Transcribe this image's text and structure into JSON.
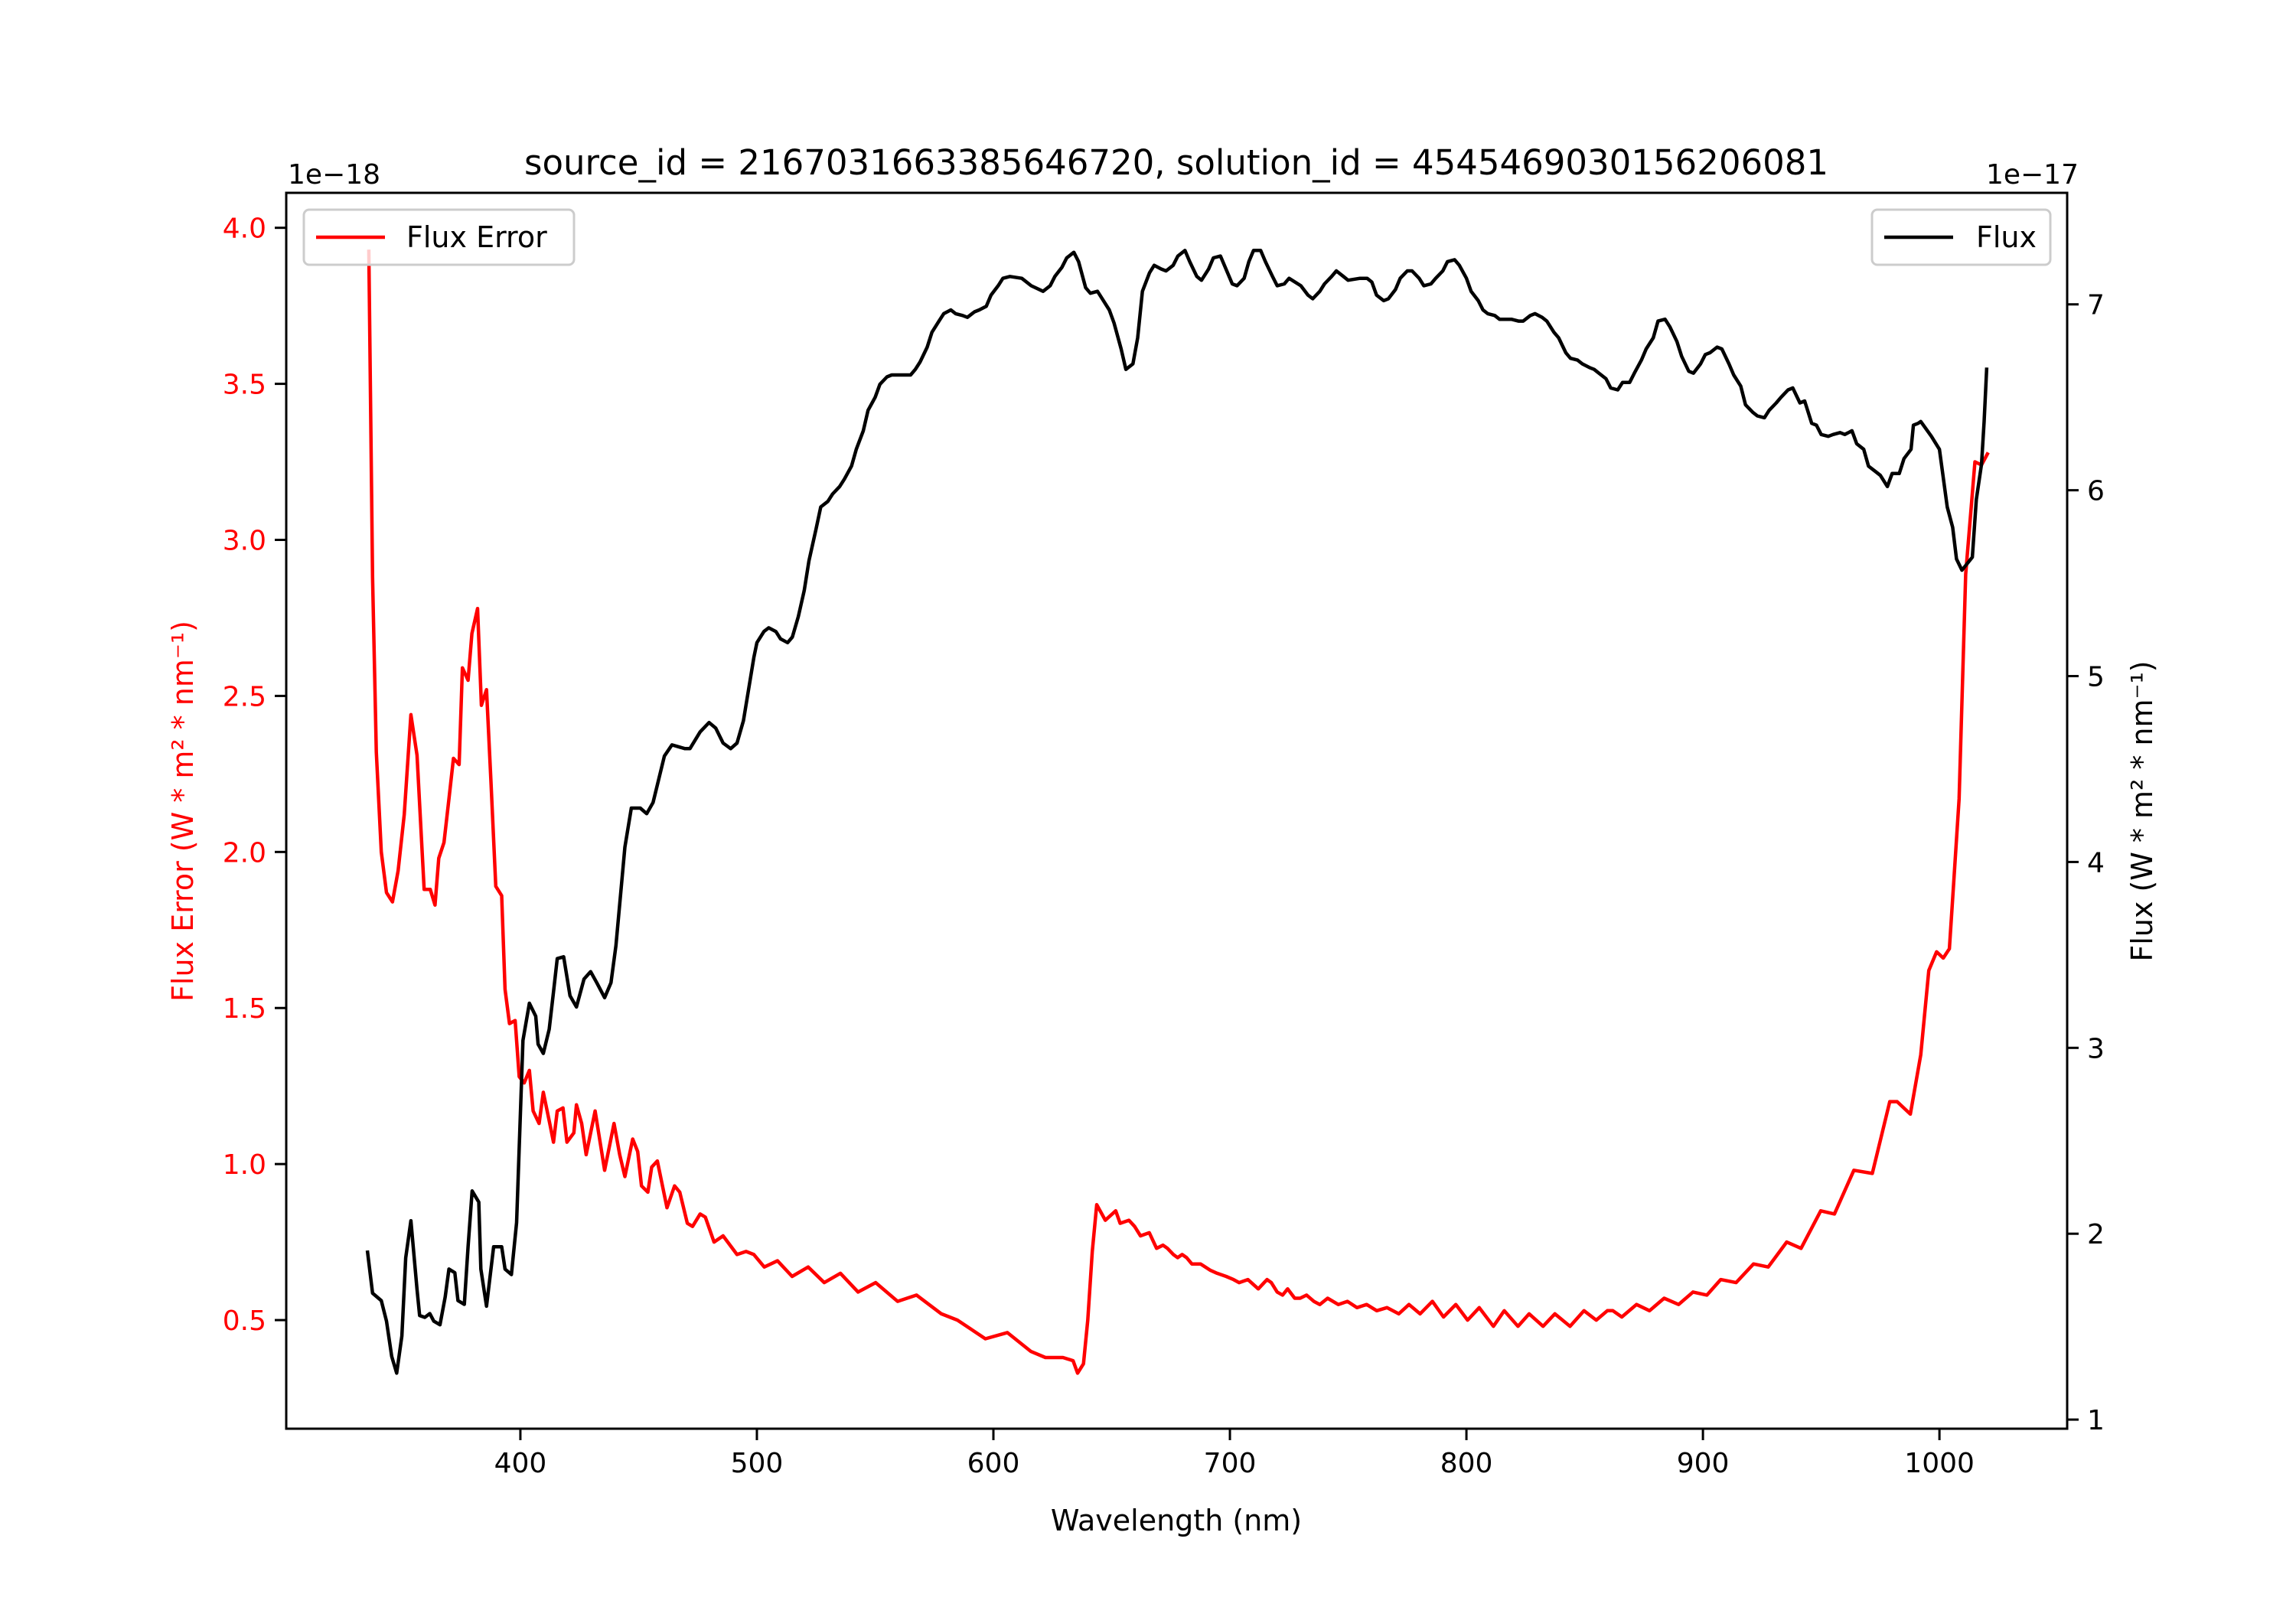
{
  "chart_data": {
    "type": "line",
    "title": "source_id = 2167031663385646720, solution_id = 4545469030156206081",
    "xlabel": "Wavelength (nm)",
    "xlim": [
      301,
      1054
    ],
    "x_ticks": [
      "400",
      "500",
      "600",
      "700",
      "800",
      "900",
      "1000"
    ],
    "grid": false,
    "left_axis": {
      "label": "Flux Error (W * m² * nm⁻¹)",
      "offset_text": "1e−18",
      "ylim": [
        0.152,
        4.112
      ],
      "ticks": [
        "0.5",
        "1.0",
        "1.5",
        "2.0",
        "2.5",
        "3.0",
        "3.5",
        "4.0"
      ],
      "color": "#ff0000"
    },
    "right_axis": {
      "label": "Flux (W * m² * nm⁻¹)",
      "offset_text": "1e−17",
      "ylim": [
        0.951,
        7.6
      ],
      "ticks": [
        "1",
        "2",
        "3",
        "4",
        "5",
        "6",
        "7"
      ],
      "color": "#000000"
    },
    "series": [
      {
        "name": "Flux Error",
        "axis": "left",
        "color": "#ff0000",
        "legend": "top-left",
        "x": [
          335.9,
          337.5,
          339.1,
          341.2,
          343.4,
          345.9,
          348.3,
          350.9,
          353.7,
          356.3,
          359.3,
          361.9,
          363.9,
          365.5,
          367.7,
          369.8,
          371.7,
          374.1,
          375.5,
          377.9,
          379.5,
          381.9,
          383.5,
          385.7,
          387.6,
          389.6,
          392.1,
          393.5,
          395.4,
          397.8,
          399.5,
          401.6,
          403.8,
          405.4,
          407.9,
          409.7,
          412.4,
          414.0,
          415.6,
          418.0,
          419.7,
          422.6,
          423.7,
          425.9,
          427.8,
          431.6,
          435.6,
          439.6,
          442.0,
          444.2,
          447.5,
          449.6,
          451.2,
          453.9,
          455.5,
          457.9,
          462.0,
          465.2,
          467.4,
          470.6,
          472.8,
          476.0,
          478.2,
          481.9,
          485.7,
          491.6,
          495.4,
          498.7,
          503.1,
          508.7,
          514.9,
          521.7,
          528.5,
          535.3,
          542.8,
          550.2,
          559.5,
          567.5,
          578.0,
          584.8,
          596.6,
          605.9,
          615.8,
          622.0,
          629.4,
          633.7,
          635.6,
          638.1,
          639.9,
          641.8,
          643.7,
          647.3,
          651.7,
          653.6,
          657.3,
          659.7,
          662.2,
          665.9,
          669.0,
          671.7,
          673.6,
          676.1,
          677.9,
          679.8,
          681.7,
          683.9,
          687.6,
          691.6,
          694.6,
          698.4,
          701.5,
          703.9,
          707.6,
          712.0,
          715.7,
          717.5,
          720.0,
          722.3,
          724.4,
          727.4,
          729.7,
          732.4,
          735.5,
          738.0,
          741.3,
          745.8,
          749.7,
          753.7,
          757.8,
          762.1,
          766.4,
          771.4,
          775.7,
          780.4,
          785.6,
          790.3,
          795.5,
          800.5,
          805.4,
          811.4,
          816.0,
          821.8,
          826.5,
          832.4,
          837.4,
          843.8,
          849.7,
          854.9,
          859.6,
          861.9,
          865.7,
          871.9,
          877.4,
          883.6,
          889.7,
          895.8,
          901.7,
          907.5,
          914.0,
          921.4,
          927.6,
          935.4,
          941.5,
          949.8,
          955.6,
          963.8,
          971.6,
          979.0,
          982.1,
          987.7,
          992.1,
          995.5,
          998.8,
          1001.6,
          1004.2,
          1006.0,
          1008.3,
          1011.1,
          1015.0,
          1017.8,
          1020.6
        ],
        "y": [
          3.93,
          2.88,
          2.32,
          2.0,
          1.87,
          1.84,
          1.94,
          2.12,
          2.44,
          2.31,
          1.88,
          1.88,
          1.83,
          1.98,
          2.03,
          2.17,
          2.3,
          2.28,
          2.59,
          2.55,
          2.7,
          2.78,
          2.47,
          2.52,
          2.22,
          1.89,
          1.86,
          1.56,
          1.45,
          1.46,
          1.28,
          1.26,
          1.3,
          1.17,
          1.13,
          1.23,
          1.13,
          1.07,
          1.17,
          1.18,
          1.07,
          1.1,
          1.19,
          1.13,
          1.03,
          1.17,
          0.98,
          1.13,
          1.03,
          0.96,
          1.08,
          1.04,
          0.93,
          0.91,
          0.99,
          1.01,
          0.86,
          0.93,
          0.91,
          0.81,
          0.8,
          0.84,
          0.83,
          0.75,
          0.77,
          0.71,
          0.72,
          0.71,
          0.67,
          0.69,
          0.64,
          0.67,
          0.62,
          0.65,
          0.59,
          0.62,
          0.56,
          0.58,
          0.52,
          0.5,
          0.44,
          0.46,
          0.4,
          0.38,
          0.38,
          0.37,
          0.33,
          0.36,
          0.5,
          0.72,
          0.87,
          0.82,
          0.85,
          0.81,
          0.82,
          0.8,
          0.77,
          0.78,
          0.73,
          0.74,
          0.73,
          0.71,
          0.7,
          0.71,
          0.7,
          0.68,
          0.68,
          0.66,
          0.65,
          0.64,
          0.63,
          0.62,
          0.63,
          0.6,
          0.63,
          0.62,
          0.59,
          0.58,
          0.6,
          0.57,
          0.57,
          0.58,
          0.56,
          0.55,
          0.57,
          0.55,
          0.56,
          0.54,
          0.55,
          0.53,
          0.54,
          0.52,
          0.55,
          0.52,
          0.56,
          0.51,
          0.55,
          0.5,
          0.54,
          0.48,
          0.53,
          0.48,
          0.52,
          0.48,
          0.52,
          0.48,
          0.53,
          0.5,
          0.53,
          0.53,
          0.51,
          0.55,
          0.53,
          0.57,
          0.55,
          0.59,
          0.58,
          0.63,
          0.62,
          0.68,
          0.67,
          0.75,
          0.73,
          0.85,
          0.84,
          0.98,
          0.97,
          1.2,
          1.2,
          1.16,
          1.35,
          1.62,
          1.68,
          1.66,
          1.69,
          1.9,
          2.17,
          2.89,
          3.25,
          3.24,
          3.28
        ]
      },
      {
        "name": "Flux",
        "axis": "right",
        "color": "#000000",
        "legend": "top-right",
        "x": [
          335.3,
          337.5,
          341.2,
          343.4,
          345.6,
          347.7,
          349.9,
          351.5,
          353.7,
          356.3,
          357.4,
          359.6,
          361.7,
          363.4,
          366.0,
          368.2,
          369.8,
          372.3,
          373.6,
          376.3,
          377.9,
          379.6,
          382.4,
          383.3,
          385.7,
          388.7,
          392.1,
          393.5,
          396.2,
          398.4,
          401.1,
          403.8,
          406.5,
          407.5,
          409.7,
          412.2,
          414.0,
          415.6,
          418.3,
          421.0,
          423.7,
          426.9,
          429.7,
          432.3,
          435.6,
          438.3,
          440.4,
          444.2,
          446.9,
          450.7,
          453.4,
          456.1,
          460.9,
          464.1,
          469.6,
          471.7,
          476.0,
          479.8,
          482.6,
          485.7,
          488.9,
          491.6,
          494.3,
          498.7,
          500,
          503,
          505,
          508,
          510,
          513,
          515,
          517.5,
          520,
          522,
          525,
          527,
          530,
          532,
          535,
          537,
          540,
          542,
          545,
          547,
          550,
          552,
          555,
          557,
          562,
          565,
          567,
          569,
          572,
          574,
          577,
          579,
          582,
          584,
          587,
          589,
          592,
          594,
          597,
          599,
          602,
          604,
          607,
          612,
          616,
          621,
          624,
          626,
          629,
          631,
          634,
          636,
          639,
          641,
          644,
          646,
          649,
          651,
          654,
          656,
          659,
          661,
          663,
          666,
          668,
          671,
          673,
          676,
          678,
          681,
          683,
          686,
          688,
          691,
          693,
          696,
          698,
          701,
          703,
          706,
          708,
          710,
          713,
          715,
          718,
          720,
          723,
          725,
          730,
          733,
          735,
          738,
          740,
          743,
          745,
          748,
          750,
          755,
          758,
          760,
          762,
          765,
          767,
          770,
          772,
          775,
          777,
          780,
          782,
          785,
          787,
          790,
          792,
          795,
          797,
          800,
          802,
          805,
          807,
          809,
          812,
          814,
          819,
          822,
          824,
          827,
          829,
          832,
          834,
          837,
          839,
          842,
          844,
          847,
          849,
          852,
          854,
          856,
          859,
          861,
          864,
          866,
          869,
          871,
          874,
          876,
          879,
          881,
          884,
          886,
          889,
          891,
          894,
          896,
          899,
          901,
          903,
          906,
          908,
          911,
          913,
          916,
          918,
          921,
          923,
          926,
          928,
          931,
          933,
          936,
          938,
          941,
          943,
          946,
          948,
          950,
          953,
          955,
          958,
          960,
          963,
          965,
          968,
          970,
          973,
          975,
          978,
          980,
          983,
          985,
          988,
          989,
          991,
          992.1,
          996.6,
          1000,
          1003.3,
          1005.6,
          1007.2,
          1009.5,
          1013.9,
          1015.6,
          1017.8,
          1018.9,
          1020
        ],
        "y": [
          1.91,
          1.68,
          1.64,
          1.53,
          1.34,
          1.25,
          1.45,
          1.87,
          2.07,
          1.7,
          1.56,
          1.55,
          1.57,
          1.53,
          1.51,
          1.66,
          1.81,
          1.79,
          1.64,
          1.62,
          1.93,
          2.23,
          2.17,
          1.81,
          1.61,
          1.93,
          1.93,
          1.81,
          1.78,
          2.06,
          3.04,
          3.24,
          3.17,
          3.02,
          2.97,
          3.1,
          3.3,
          3.48,
          3.49,
          3.28,
          3.22,
          3.37,
          3.41,
          3.35,
          3.27,
          3.35,
          3.55,
          4.08,
          4.29,
          4.29,
          4.26,
          4.32,
          4.57,
          4.63,
          4.61,
          4.61,
          4.7,
          4.75,
          4.72,
          4.64,
          4.61,
          4.64,
          4.76,
          5.1,
          5.18,
          5.24,
          5.26,
          5.24,
          5.2,
          5.18,
          5.21,
          5.32,
          5.46,
          5.62,
          5.79,
          5.91,
          5.94,
          5.98,
          6.02,
          6.06,
          6.13,
          6.22,
          6.32,
          6.43,
          6.5,
          6.57,
          6.61,
          6.62,
          6.62,
          6.62,
          6.65,
          6.69,
          6.77,
          6.85,
          6.91,
          6.95,
          6.97,
          6.95,
          6.94,
          6.93,
          6.96,
          6.97,
          6.99,
          7.05,
          7.1,
          7.14,
          7.15,
          7.14,
          7.1,
          7.07,
          7.1,
          7.15,
          7.2,
          7.25,
          7.28,
          7.23,
          7.09,
          7.06,
          7.07,
          7.03,
          6.97,
          6.9,
          6.76,
          6.65,
          6.68,
          6.82,
          7.07,
          7.17,
          7.21,
          7.19,
          7.18,
          7.21,
          7.26,
          7.29,
          7.23,
          7.15,
          7.13,
          7.19,
          7.25,
          7.26,
          7.2,
          7.11,
          7.1,
          7.14,
          7.23,
          7.29,
          7.29,
          7.23,
          7.15,
          7.1,
          7.11,
          7.14,
          7.1,
          7.05,
          7.03,
          7.07,
          7.11,
          7.15,
          7.18,
          7.15,
          7.13,
          7.14,
          7.14,
          7.12,
          7.05,
          7.02,
          7.03,
          7.08,
          7.14,
          7.18,
          7.18,
          7.14,
          7.1,
          7.11,
          7.14,
          7.18,
          7.23,
          7.24,
          7.21,
          7.14,
          7.07,
          7.02,
          6.97,
          6.95,
          6.94,
          6.92,
          6.92,
          6.91,
          6.91,
          6.94,
          6.95,
          6.93,
          6.91,
          6.85,
          6.82,
          6.74,
          6.71,
          6.7,
          6.68,
          6.66,
          6.65,
          6.63,
          6.6,
          6.55,
          6.54,
          6.58,
          6.58,
          6.63,
          6.7,
          6.76,
          6.82,
          6.91,
          6.92,
          6.88,
          6.8,
          6.72,
          6.64,
          6.63,
          6.68,
          6.73,
          6.74,
          6.77,
          6.76,
          6.68,
          6.62,
          6.56,
          6.46,
          6.42,
          6.4,
          6.39,
          6.43,
          6.47,
          6.5,
          6.54,
          6.55,
          6.47,
          6.48,
          6.36,
          6.35,
          6.3,
          6.29,
          6.3,
          6.31,
          6.3,
          6.32,
          6.25,
          6.22,
          6.13,
          6.1,
          6.08,
          6.02,
          6.09,
          6.09,
          6.17,
          6.22,
          6.35,
          6.36,
          6.37,
          6.29,
          6.22,
          5.91,
          5.8,
          5.63,
          5.57,
          5.64,
          5.95,
          6.14,
          6.37,
          6.66
        ]
      }
    ]
  }
}
